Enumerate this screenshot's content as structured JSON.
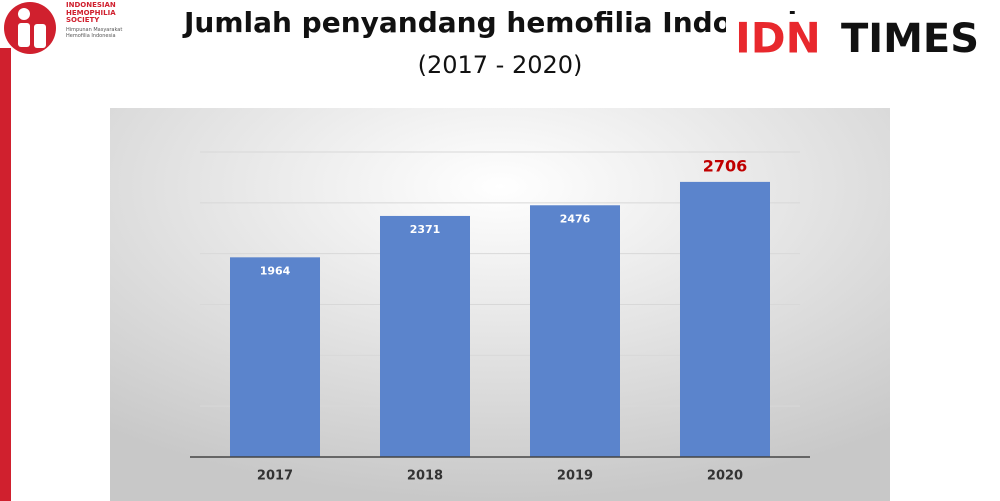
{
  "logo": {
    "name": "INDONESIAN HEMOPHILIA SOCIETY",
    "subname": "Himpunan Masyarakat Hemofilia Indonesia"
  },
  "brand": {
    "first": "IDN",
    "second": "TIMES"
  },
  "chart_data": {
    "type": "bar",
    "title": "Jumlah penyandang hemofilia Indonesia",
    "subtitle": "(2017 - 2020)",
    "categories": [
      "2017",
      "2018",
      "2019",
      "2020"
    ],
    "values": [
      1964,
      2371,
      2476,
      2706
    ],
    "color": "#5b84cc",
    "value_label_colors": [
      "#ffffff",
      "#ffffff",
      "#ffffff",
      "#c00000"
    ],
    "ylim": [
      0,
      3000
    ],
    "yticks": [
      0,
      500,
      1000,
      1500,
      2000,
      2500,
      3000
    ],
    "grid": true
  }
}
